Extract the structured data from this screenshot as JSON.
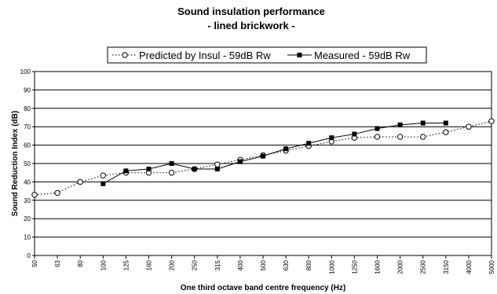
{
  "chart_data": {
    "type": "line",
    "title": "Sound insulation performance",
    "subtitle": "- lined brickwork -",
    "xlabel": "One third octave band centre frequency (Hz)",
    "ylabel": "Sound Reduction Index (dB)",
    "ylim": [
      0,
      100
    ],
    "yticks": [
      "0",
      "10",
      "20",
      "30",
      "40",
      "50",
      "60",
      "70",
      "80",
      "90",
      "100"
    ],
    "categories": [
      "50",
      "63",
      "80",
      "100",
      "125",
      "160",
      "200",
      "250",
      "315",
      "400",
      "500",
      "630",
      "800",
      "1000",
      "1250",
      "1600",
      "2000",
      "2500",
      "3150",
      "4000",
      "5000"
    ],
    "grid": true,
    "legend_position": "top",
    "series": [
      {
        "name": "Predicted by Insul - 59dB Rw",
        "style": "dotted",
        "marker": "open-circle",
        "color": "#000000",
        "values": [
          33,
          34,
          40,
          43.5,
          45,
          45,
          45,
          47,
          49.5,
          52,
          54.5,
          57,
          59.5,
          62,
          64,
          64.5,
          64.5,
          64.5,
          67,
          70,
          73
        ]
      },
      {
        "name": "Measured - 59dB Rw",
        "style": "solid",
        "marker": "filled-square",
        "color": "#000000",
        "values": [
          null,
          null,
          null,
          39,
          46,
          47,
          50,
          47,
          47,
          51,
          54,
          58,
          61,
          64,
          66,
          69,
          71,
          72,
          72,
          null,
          null
        ]
      }
    ]
  }
}
